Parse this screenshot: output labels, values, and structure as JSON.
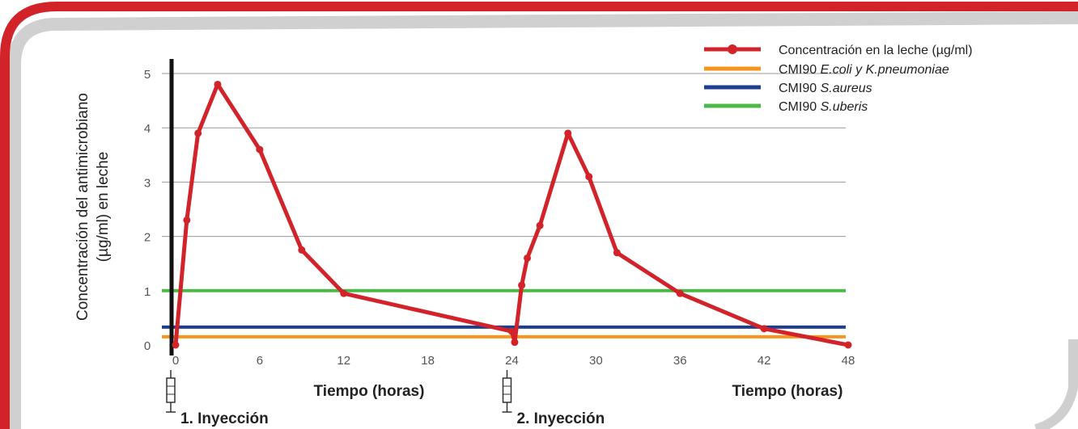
{
  "colors": {
    "frame": "#d2232a",
    "frame_shadow": "#c4c4c4",
    "concentration": "#d2232a",
    "mic_ecoli": "#f7941d",
    "mic_saureus": "#1e3f8f",
    "mic_suberis": "#4db848",
    "grid": "#999999",
    "axis": "#111111"
  },
  "chart_data": {
    "type": "line",
    "ylabel_line1": "Concentración del antimicrobiano",
    "ylabel_line2": "(µg/ml) en leche",
    "xlabel_left": "Tiempo (horas)",
    "xlabel_right": "Tiempo (horas)",
    "xlim": [
      0,
      48
    ],
    "ylim": [
      0,
      5
    ],
    "x_ticks": [
      "0",
      "6",
      "12",
      "18",
      "24",
      "30",
      "36",
      "42",
      "48"
    ],
    "y_ticks": [
      "0",
      "1",
      "2",
      "3",
      "4",
      "5"
    ],
    "grid": "horizontal",
    "legend_position": "top-right",
    "series": [
      {
        "name": "Concentración en la leche (µg/ml)",
        "x": [
          0,
          0.8,
          1.6,
          3,
          6,
          9,
          12,
          24,
          24.2,
          24.7,
          25.1,
          26,
          28,
          29.5,
          31.5,
          36,
          42,
          48
        ],
        "y": [
          0,
          2.3,
          3.9,
          4.8,
          3.6,
          1.75,
          0.95,
          0.25,
          0.05,
          1.1,
          1.6,
          2.2,
          3.9,
          3.1,
          1.7,
          0.95,
          0.3,
          0
        ]
      }
    ],
    "reference_lines": [
      {
        "name_prefix": "CMI90 ",
        "name_italic": "E.coli y K.pneumoniae",
        "y": 0.15,
        "color": "#f7941d"
      },
      {
        "name_prefix": "CMI90 ",
        "name_italic": "S.aureus",
        "y": 0.33,
        "color": "#1e3f8f"
      },
      {
        "name_prefix": "CMI90 ",
        "name_italic": "S.uberis",
        "y": 1.0,
        "color": "#4db848"
      }
    ],
    "injections": [
      {
        "label": "1. Inyección",
        "x": 0
      },
      {
        "label": "2. Inyección",
        "x": 24
      }
    ]
  }
}
